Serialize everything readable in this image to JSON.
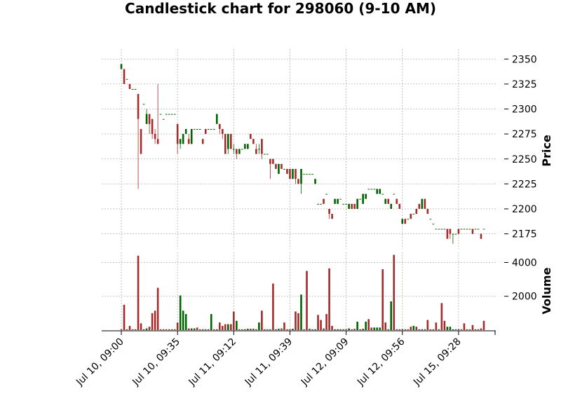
{
  "chart_data": [
    {
      "type": "candlestick",
      "title": "Candlestick chart for 298060 (9-10 AM)",
      "ylabel": "Price",
      "ylim": [
        2160,
        2360
      ],
      "yticks": [
        2175,
        2200,
        2225,
        2250,
        2275,
        2300,
        2325,
        2350
      ],
      "grid": true,
      "colors": {
        "up": "#006400",
        "down": "#a52a2a",
        "grid": "#b0b0b0"
      },
      "x_tick_labels": [
        "Jul 10, 09:00",
        "Jul 10, 09:35",
        "Jul 11, 09:12",
        "Jul 11, 09:39",
        "Jul 12, 09:09",
        "Jul 12, 09:56",
        "Jul 15, 09:28"
      ],
      "x_tick_index": [
        0,
        20,
        40,
        60,
        80,
        100,
        120
      ],
      "ohlc": [
        [
          2340,
          2345,
          2340,
          2345
        ],
        [
          2340,
          2340,
          2325,
          2325
        ],
        [
          2330,
          2330,
          2330,
          2330
        ],
        [
          2325,
          2325,
          2320,
          2320
        ],
        [
          2320,
          2320,
          2320,
          2320
        ],
        [
          2320,
          2320,
          2320,
          2320
        ],
        [
          2315,
          2315,
          2220,
          2290
        ],
        [
          2280,
          2280,
          2255,
          2255
        ],
        [
          2305,
          2305,
          2305,
          2305
        ],
        [
          2285,
          2300,
          2285,
          2295
        ],
        [
          2295,
          2295,
          2275,
          2285
        ],
        [
          2290,
          2290,
          2270,
          2275
        ],
        [
          2275,
          2280,
          2265,
          2270
        ],
        [
          2270,
          2325,
          2265,
          2265
        ],
        [
          2295,
          2295,
          2295,
          2295
        ],
        [
          2290,
          2290,
          2290,
          2290
        ],
        [
          2295,
          2295,
          2295,
          2295
        ],
        [
          2295,
          2295,
          2295,
          2295
        ],
        [
          2295,
          2295,
          2295,
          2295
        ],
        [
          2295,
          2295,
          2295,
          2295
        ],
        [
          2285,
          2285,
          2255,
          2265
        ],
        [
          2265,
          2270,
          2260,
          2270
        ],
        [
          2265,
          2275,
          2265,
          2275
        ],
        [
          2275,
          2280,
          2275,
          2280
        ],
        [
          2270,
          2275,
          2265,
          2265
        ],
        [
          2265,
          2280,
          2265,
          2280
        ],
        [
          2280,
          2280,
          2280,
          2280
        ],
        [
          2280,
          2280,
          2280,
          2280
        ],
        [
          2280,
          2280,
          2280,
          2280
        ],
        [
          2270,
          2270,
          2265,
          2265
        ],
        [
          2280,
          2280,
          2275,
          2275
        ],
        [
          2280,
          2280,
          2280,
          2280
        ],
        [
          2280,
          2280,
          2280,
          2280
        ],
        [
          2280,
          2280,
          2280,
          2280
        ],
        [
          2285,
          2295,
          2285,
          2295
        ],
        [
          2285,
          2285,
          2275,
          2280
        ],
        [
          2280,
          2280,
          2270,
          2275
        ],
        [
          2275,
          2275,
          2255,
          2255
        ],
        [
          2260,
          2275,
          2255,
          2275
        ],
        [
          2275,
          2275,
          2260,
          2260
        ],
        [
          2260,
          2265,
          2255,
          2260
        ],
        [
          2260,
          2260,
          2250,
          2255
        ],
        [
          2255,
          2260,
          2255,
          2260
        ],
        [
          2260,
          2260,
          2260,
          2260
        ],
        [
          2260,
          2265,
          2260,
          2265
        ],
        [
          2260,
          2265,
          2260,
          2265
        ],
        [
          2275,
          2275,
          2270,
          2270
        ],
        [
          2270,
          2270,
          2265,
          2265
        ],
        [
          2260,
          2265,
          2255,
          2255
        ],
        [
          2260,
          2265,
          2255,
          2260
        ],
        [
          2270,
          2270,
          2250,
          2255
        ],
        [
          2255,
          2255,
          2255,
          2255
        ],
        [
          2255,
          2255,
          2255,
          2255
        ],
        [
          2250,
          2250,
          2230,
          2245
        ],
        [
          2250,
          2250,
          2245,
          2245
        ],
        [
          2245,
          2245,
          2240,
          2240
        ],
        [
          2235,
          2245,
          2235,
          2245
        ],
        [
          2245,
          2245,
          2240,
          2240
        ],
        [
          2240,
          2240,
          2240,
          2240
        ],
        [
          2240,
          2240,
          2235,
          2235
        ],
        [
          2240,
          2240,
          2230,
          2230
        ],
        [
          2230,
          2240,
          2230,
          2240
        ],
        [
          2240,
          2240,
          2225,
          2230
        ],
        [
          2230,
          2230,
          2225,
          2225
        ],
        [
          2225,
          2240,
          2215,
          2240
        ],
        [
          2235,
          2235,
          2235,
          2235
        ],
        [
          2235,
          2235,
          2235,
          2235
        ],
        [
          2235,
          2235,
          2235,
          2235
        ],
        [
          2235,
          2235,
          2235,
          2235
        ],
        [
          2225,
          2230,
          2225,
          2230
        ],
        [
          2205,
          2205,
          2205,
          2205
        ],
        [
          2205,
          2205,
          2205,
          2205
        ],
        [
          2210,
          2210,
          2205,
          2205
        ],
        [
          2215,
          2215,
          2215,
          2215
        ],
        [
          2200,
          2200,
          2190,
          2195
        ],
        [
          2195,
          2195,
          2190,
          2190
        ],
        [
          2205,
          2210,
          2205,
          2210
        ],
        [
          2205,
          2210,
          2205,
          2210
        ],
        [
          2210,
          2210,
          2210,
          2210
        ],
        [
          2205,
          2205,
          2205,
          2205
        ],
        [
          2205,
          2205,
          2205,
          2205
        ],
        [
          2200,
          2205,
          2200,
          2205
        ],
        [
          2205,
          2205,
          2200,
          2200
        ],
        [
          2205,
          2205,
          2200,
          2200
        ],
        [
          2200,
          2210,
          2200,
          2210
        ],
        [
          2210,
          2210,
          2210,
          2210
        ],
        [
          2205,
          2215,
          2205,
          2215
        ],
        [
          2210,
          2215,
          2210,
          2215
        ],
        [
          2220,
          2220,
          2220,
          2220
        ],
        [
          2220,
          2220,
          2220,
          2220
        ],
        [
          2220,
          2220,
          2220,
          2220
        ],
        [
          2215,
          2220,
          2215,
          2220
        ],
        [
          2215,
          2220,
          2215,
          2220
        ],
        [
          2215,
          2215,
          2215,
          2215
        ],
        [
          2205,
          2210,
          2205,
          2210
        ],
        [
          2210,
          2210,
          2205,
          2205
        ],
        [
          2200,
          2205,
          2200,
          2205
        ],
        [
          2215,
          2215,
          2215,
          2215
        ],
        [
          2210,
          2210,
          2205,
          2205
        ],
        [
          2205,
          2205,
          2200,
          2200
        ],
        [
          2185,
          2190,
          2185,
          2190
        ],
        [
          2190,
          2190,
          2185,
          2185
        ],
        [
          2190,
          2190,
          2190,
          2190
        ],
        [
          2195,
          2195,
          2190,
          2190
        ],
        [
          2195,
          2195,
          2195,
          2195
        ],
        [
          2200,
          2200,
          2195,
          2195
        ],
        [
          2205,
          2205,
          2200,
          2200
        ],
        [
          2200,
          2210,
          2200,
          2210
        ],
        [
          2210,
          2210,
          2200,
          2200
        ],
        [
          2200,
          2200,
          2195,
          2195
        ],
        [
          2190,
          2190,
          2190,
          2190
        ],
        [
          2185,
          2185,
          2185,
          2185
        ],
        [
          2180,
          2180,
          2180,
          2180
        ],
        [
          2180,
          2180,
          2180,
          2180
        ],
        [
          2180,
          2180,
          2180,
          2180
        ],
        [
          2180,
          2180,
          2180,
          2180
        ],
        [
          2180,
          2180,
          2170,
          2170
        ],
        [
          2180,
          2180,
          2170,
          2175
        ],
        [
          2175,
          2175,
          2165,
          2175
        ],
        [
          2175,
          2175,
          2175,
          2175
        ],
        [
          2180,
          2180,
          2175,
          2175
        ],
        [
          2180,
          2180,
          2180,
          2180
        ],
        [
          2180,
          2180,
          2180,
          2180
        ],
        [
          2180,
          2180,
          2180,
          2180
        ],
        [
          2180,
          2180,
          2180,
          2180
        ],
        [
          2180,
          2180,
          2175,
          2175
        ],
        [
          2180,
          2180,
          2180,
          2180
        ],
        [
          2180,
          2180,
          2180,
          2180
        ],
        [
          2175,
          2175,
          2170,
          2170
        ],
        [
          2180,
          2180,
          2180,
          2180
        ]
      ]
    },
    {
      "type": "bar",
      "ylabel": "Volume",
      "ylim": [
        0,
        4600
      ],
      "yticks": [
        2000,
        4000
      ],
      "grid": true,
      "values": [
        50,
        1500,
        50,
        250,
        50,
        50,
        4400,
        400,
        50,
        100,
        200,
        1000,
        1150,
        2500,
        50,
        50,
        50,
        50,
        50,
        50,
        450,
        2050,
        1150,
        950,
        100,
        100,
        100,
        150,
        50,
        50,
        50,
        50,
        950,
        50,
        50,
        450,
        250,
        350,
        350,
        350,
        1100,
        550,
        50,
        50,
        50,
        80,
        80,
        80,
        50,
        450,
        1150,
        50,
        50,
        50,
        2750,
        50,
        80,
        100,
        450,
        50,
        50,
        80,
        1100,
        1000,
        2100,
        50,
        3500,
        80,
        50,
        50,
        900,
        600,
        100,
        950,
        3650,
        250,
        50,
        50,
        50,
        50,
        50,
        100,
        50,
        80,
        500,
        50,
        80,
        500,
        650,
        150,
        150,
        150,
        150,
        3600,
        450,
        50,
        1700,
        4450,
        50,
        50,
        50,
        50,
        50,
        200,
        250,
        200,
        50,
        50,
        50,
        600,
        50,
        50,
        450,
        50,
        1600,
        550,
        200,
        200,
        50,
        50,
        50,
        50,
        400,
        50,
        50,
        300,
        50,
        50,
        100,
        550
      ],
      "colors": [
        "#a52a2a",
        "#a52a2a",
        "#a52a2a",
        "#a52a2a",
        "#a52a2a",
        "#a52a2a",
        "#a52a2a",
        "#a52a2a",
        "#006400",
        "#006400",
        "#a52a2a",
        "#a52a2a",
        "#a52a2a",
        "#a52a2a",
        "#a52a2a",
        "#a52a2a",
        "#a52a2a",
        "#a52a2a",
        "#a52a2a",
        "#a52a2a",
        "#a52a2a",
        "#006400",
        "#006400",
        "#006400",
        "#a52a2a",
        "#006400",
        "#006400",
        "#a52a2a",
        "#a52a2a",
        "#a52a2a",
        "#a52a2a",
        "#a52a2a",
        "#006400",
        "#a52a2a",
        "#006400",
        "#a52a2a",
        "#a52a2a",
        "#a52a2a",
        "#006400",
        "#a52a2a",
        "#a52a2a",
        "#006400",
        "#a52a2a",
        "#a52a2a",
        "#006400",
        "#006400",
        "#a52a2a",
        "#a52a2a",
        "#a52a2a",
        "#006400",
        "#a52a2a",
        "#a52a2a",
        "#a52a2a",
        "#a52a2a",
        "#a52a2a",
        "#a52a2a",
        "#006400",
        "#a52a2a",
        "#a52a2a",
        "#a52a2a",
        "#a52a2a",
        "#006400",
        "#a52a2a",
        "#a52a2a",
        "#006400",
        "#a52a2a",
        "#a52a2a",
        "#a52a2a",
        "#a52a2a",
        "#006400",
        "#a52a2a",
        "#a52a2a",
        "#a52a2a",
        "#a52a2a",
        "#a52a2a",
        "#a52a2a",
        "#006400",
        "#006400",
        "#006400",
        "#a52a2a",
        "#a52a2a",
        "#006400",
        "#a52a2a",
        "#a52a2a",
        "#006400",
        "#a52a2a",
        "#006400",
        "#006400",
        "#a52a2a",
        "#a52a2a",
        "#006400",
        "#006400",
        "#006400",
        "#a52a2a",
        "#a52a2a",
        "#a52a2a",
        "#006400",
        "#a52a2a",
        "#a52a2a",
        "#a52a2a",
        "#006400",
        "#a52a2a",
        "#a52a2a",
        "#a52a2a",
        "#006400",
        "#a52a2a",
        "#a52a2a",
        "#006400",
        "#a52a2a",
        "#a52a2a",
        "#a52a2a",
        "#a52a2a",
        "#a52a2a",
        "#a52a2a",
        "#a52a2a",
        "#a52a2a",
        "#006400",
        "#006400",
        "#006400",
        "#a52a2a",
        "#006400",
        "#a52a2a",
        "#a52a2a",
        "#a52a2a",
        "#a52a2a",
        "#a52a2a",
        "#a52a2a",
        "#a52a2a",
        "#a52a2a",
        "#a52a2a"
      ]
    }
  ]
}
